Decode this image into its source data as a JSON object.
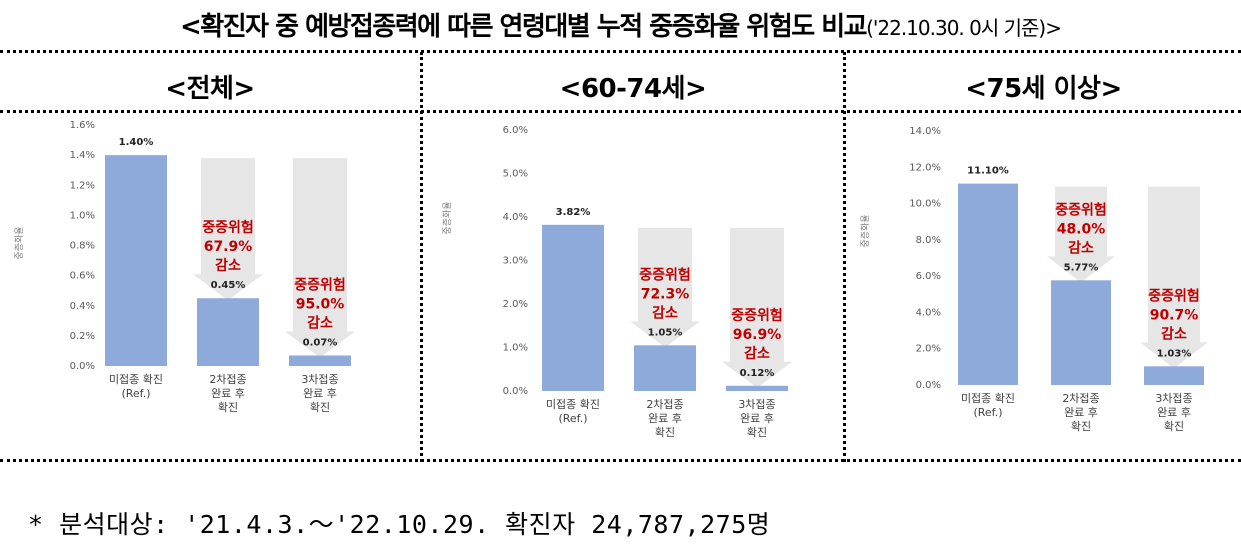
{
  "title": {
    "main": "<확진자 중 예방접종력에 따른 연령대별 누적 중증화율 위험도 비교",
    "date": "('22.10.30. 0시 기준)>"
  },
  "colors": {
    "bar": "#8eaadb",
    "arrow": "#e6e6e6",
    "risk_text": "#c00000"
  },
  "chart_data": [
    {
      "type": "bar",
      "panel_title": "<전체>",
      "ylabel": "중증화율",
      "ylim": [
        0,
        1.6
      ],
      "yticks": [
        0,
        0.2,
        0.4,
        0.6,
        0.8,
        1.0,
        1.2,
        1.4,
        1.6
      ],
      "ytick_labels": [
        "0.0%",
        "0.2%",
        "0.4%",
        "0.6%",
        "0.8%",
        "1.0%",
        "1.2%",
        "1.4%",
        "1.6%"
      ],
      "categories": [
        [
          "미접종 확진",
          "(Ref.)"
        ],
        [
          "2차접종",
          "완료 후",
          "확진"
        ],
        [
          "3차접종",
          "완료 후",
          "확진"
        ]
      ],
      "values": [
        1.4,
        0.45,
        0.07
      ],
      "value_labels": [
        "1.40%",
        "0.45%",
        "0.07%"
      ],
      "reductions": [
        null,
        [
          "중증위험",
          "67.9%",
          "감소"
        ],
        [
          "중증위험",
          "95.0%",
          "감소"
        ]
      ]
    },
    {
      "type": "bar",
      "panel_title": "<60-74세>",
      "ylabel": "중증화율",
      "ylim": [
        0,
        6
      ],
      "yticks": [
        0,
        1,
        2,
        3,
        4,
        5,
        6
      ],
      "ytick_labels": [
        "0.0%",
        "1.0%",
        "2.0%",
        "3.0%",
        "4.0%",
        "5.0%",
        "6.0%"
      ],
      "categories": [
        [
          "미접종 확진",
          "(Ref.)"
        ],
        [
          "2차접종",
          "완료 후",
          "확진"
        ],
        [
          "3차접종",
          "완료 후",
          "확진"
        ]
      ],
      "values": [
        3.82,
        1.05,
        0.12
      ],
      "value_labels": [
        "3.82%",
        "1.05%",
        "0.12%"
      ],
      "reductions": [
        null,
        [
          "중증위험",
          "72.3%",
          "감소"
        ],
        [
          "중증위험",
          "96.9%",
          "감소"
        ]
      ]
    },
    {
      "type": "bar",
      "panel_title": "<75세 이상>",
      "ylabel": "중증화율",
      "ylim": [
        0,
        14
      ],
      "yticks": [
        0,
        2,
        4,
        6,
        8,
        10,
        12,
        14
      ],
      "ytick_labels": [
        "0.0%",
        "2.0%",
        "4.0%",
        "6.0%",
        "8.0%",
        "10.0%",
        "12.0%",
        "14.0%"
      ],
      "categories": [
        [
          "미접종 확진",
          "(Ref.)"
        ],
        [
          "2차접종",
          "완료 후",
          "확진"
        ],
        [
          "3차접종",
          "완료 후",
          "확진"
        ]
      ],
      "values": [
        11.1,
        5.77,
        1.03
      ],
      "value_labels": [
        "11.10%",
        "5.77%",
        "1.03%"
      ],
      "reductions": [
        null,
        [
          "중증위험",
          "48.0%",
          "감소"
        ],
        [
          "중증위험",
          "90.7%",
          "감소"
        ]
      ]
    }
  ],
  "footnote": "* 분석대상: '21.4.3.～'22.10.29. 확진자 24,787,275명"
}
